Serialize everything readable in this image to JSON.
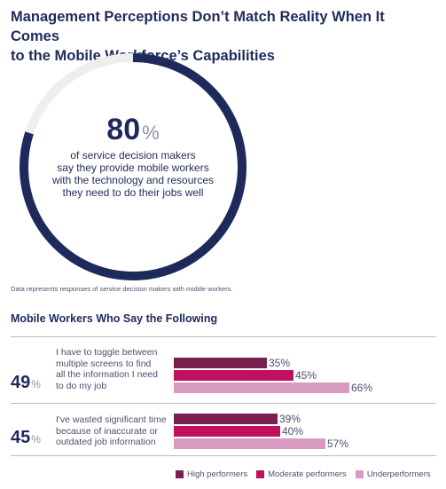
{
  "title_lines": [
    "Management Perceptions Don’t Match Reality When It Comes",
    "to the Mobile Workforce’s Capabilities"
  ],
  "ring": {
    "value": 80,
    "value_text": "80",
    "unit": "%",
    "text_lines": [
      "of service decision makers",
      "say they provide mobile workers",
      "with the technology and resources",
      "they need to do their jobs well"
    ],
    "color_fill": "#1f2a5c",
    "color_track": "#eeeeee"
  },
  "note": "Data represents responses of service decision makers with mobile workers.",
  "subtitle": "Mobile Workers Who Say the Following",
  "chart_data": {
    "type": "bar",
    "orientation": "horizontal",
    "categories": [
      "I have to toggle between multiple screens to find all the information I need to do my job",
      "I've wasted significant time because of inaccurate or outdated job information"
    ],
    "category_totals": [
      49,
      45
    ],
    "series": [
      {
        "name": "High performers",
        "values": [
          35,
          39
        ],
        "color": "#7a1f52"
      },
      {
        "name": "Moderate performers",
        "values": [
          45,
          40
        ],
        "color": "#c0105e"
      },
      {
        "name": "Underperformers",
        "values": [
          66,
          57
        ],
        "color": "#d89ac0"
      }
    ],
    "legend": "bottom-right"
  },
  "groups": [
    {
      "total": "49",
      "unit": "%",
      "lines": [
        "I have to toggle between",
        "multiple screens to find",
        "all the information I need",
        "to do my job"
      ],
      "labels": [
        "35%",
        "45%",
        "66%"
      ]
    },
    {
      "total": "45",
      "unit": "%",
      "lines": [
        "I've wasted significant time",
        "because of inaccurate or",
        "outdated job information"
      ],
      "labels": [
        "39%",
        "40%",
        "57%"
      ]
    }
  ]
}
